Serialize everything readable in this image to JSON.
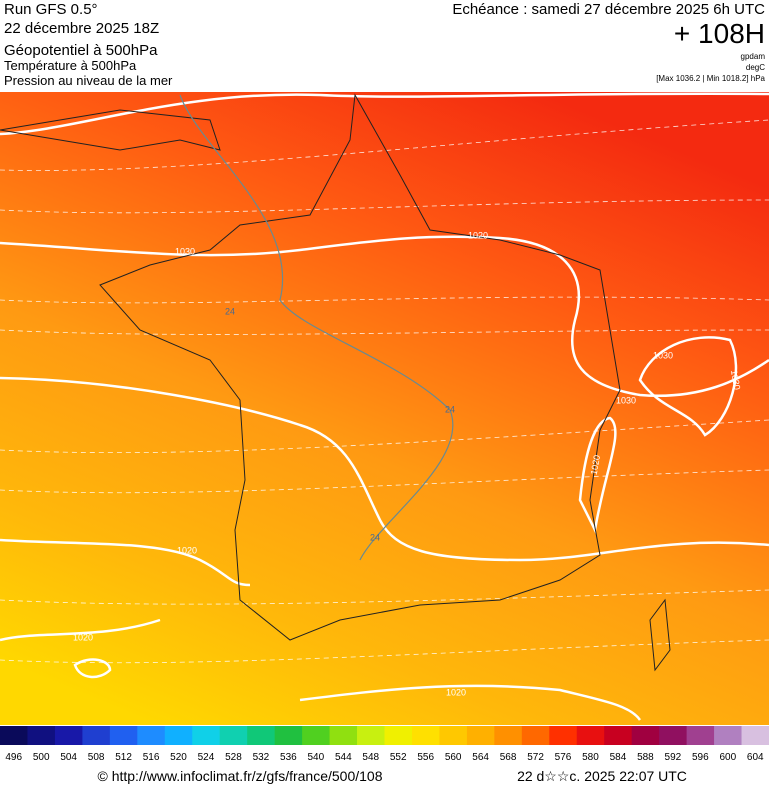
{
  "header": {
    "run": "Run GFS 0.5°",
    "run_date": "22 décembre 2025 18Z",
    "field1": "Géopotentiel à 500hPa",
    "field2": "Température à 500hPa",
    "field3": "Pression au niveau de la mer",
    "echeance": "Echéance : samedi 27 décembre 2025 6h UTC",
    "offset": "+ 108H",
    "unit1": "gpdam",
    "unit2": "degC",
    "range": "[Max 1036.2 | Min 1018.2] hPa"
  },
  "map": {
    "contour_labels": [
      {
        "text": "1030"
      },
      {
        "text": "1020"
      },
      {
        "text": "24"
      },
      {
        "text": "1030"
      },
      {
        "text": "1030"
      },
      {
        "text": "1030"
      },
      {
        "text": "1020"
      },
      {
        "text": "24"
      },
      {
        "text": "1020"
      },
      {
        "text": "24"
      },
      {
        "text": "1020"
      },
      {
        "text": "1020"
      }
    ]
  },
  "scale": {
    "values": [
      496,
      500,
      504,
      508,
      512,
      516,
      520,
      524,
      528,
      532,
      536,
      540,
      544,
      548,
      552,
      556,
      560,
      564,
      568,
      572,
      576,
      580,
      584,
      588,
      592,
      596,
      600,
      604
    ],
    "colors": [
      "#0a0a5a",
      "#101080",
      "#1818a8",
      "#1f3fd0",
      "#2060f0",
      "#1e8cff",
      "#10b0ff",
      "#10d0e8",
      "#10d0b0",
      "#10c878",
      "#20c040",
      "#50d020",
      "#90e010",
      "#c8f010",
      "#f0f000",
      "#ffe000",
      "#ffc800",
      "#ffb000",
      "#ff9000",
      "#ff6800",
      "#ff3000",
      "#e81010",
      "#c80020",
      "#a00040",
      "#901060",
      "#a04090",
      "#b080c0",
      "#d8c0e0"
    ]
  },
  "footer": {
    "url": "© http://www.infoclimat.fr/z/gfs/france/500/108",
    "generated": "22 d☆☆c. 2025 22:07 UTC"
  }
}
